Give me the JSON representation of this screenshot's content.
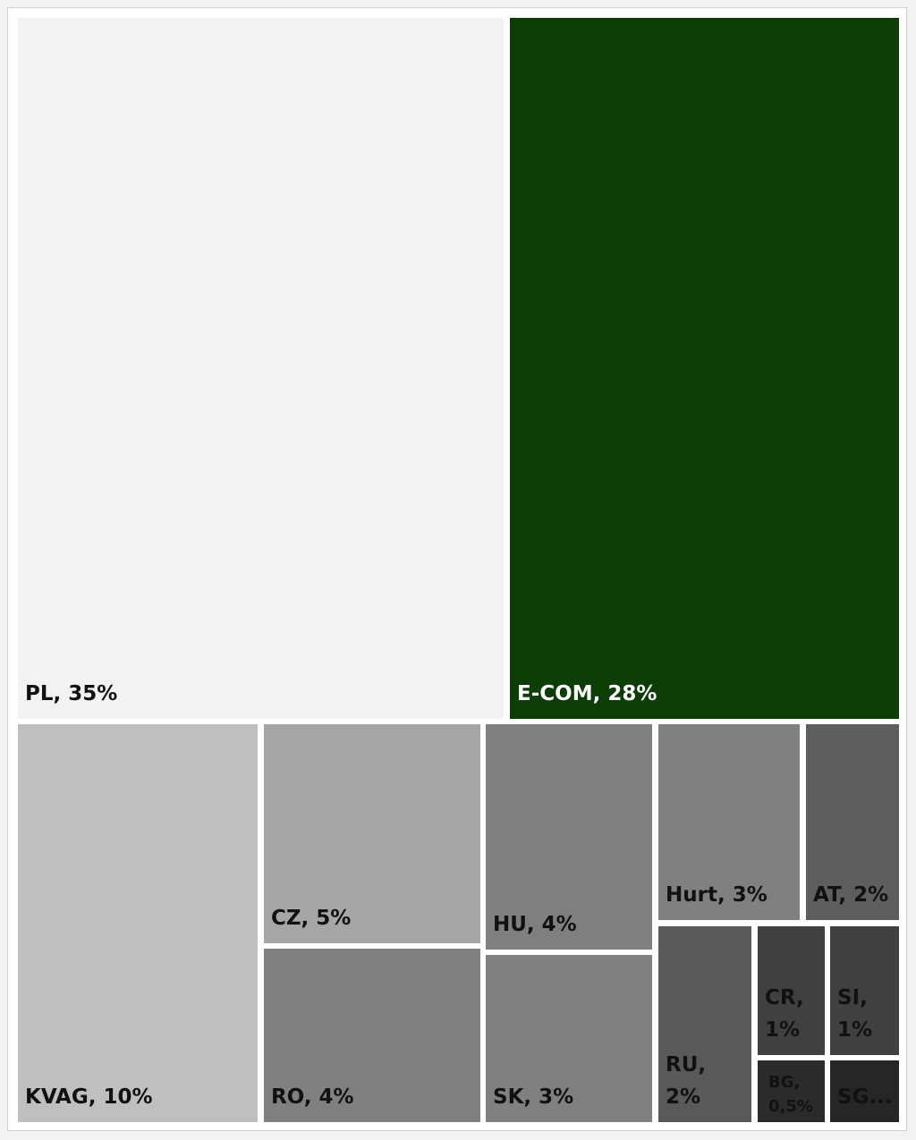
{
  "chart_data": {
    "type": "treemap",
    "title": "",
    "items": [
      {
        "name": "PL",
        "value": 35,
        "label": "PL, 35%",
        "color": "#f2f2f2",
        "text_color": "#111111"
      },
      {
        "name": "E-COM",
        "value": 28,
        "label": "E-COM, 28%",
        "color": "#0b3d05",
        "text_color": "#ffffff"
      },
      {
        "name": "KVAG",
        "value": 10,
        "label": "KVAG, 10%",
        "color": "#bfbfbf",
        "text_color": "#111111"
      },
      {
        "name": "CZ",
        "value": 5,
        "label": "CZ, 5%",
        "color": "#a6a6a6",
        "text_color": "#111111"
      },
      {
        "name": "RO",
        "value": 4,
        "label": "RO, 4%",
        "color": "#808080",
        "text_color": "#111111"
      },
      {
        "name": "HU",
        "value": 4,
        "label": "HU, 4%",
        "color": "#7f7f7f",
        "text_color": "#111111"
      },
      {
        "name": "SK",
        "value": 3,
        "label": "SK, 3%",
        "color": "#808080",
        "text_color": "#111111"
      },
      {
        "name": "Hurt",
        "value": 3,
        "label": "Hurt, 3%",
        "color": "#808080",
        "text_color": "#111111"
      },
      {
        "name": "AT",
        "value": 2,
        "label": "AT, 2%",
        "color": "#5e5e5e",
        "text_color": "#111111"
      },
      {
        "name": "RU",
        "value": 2,
        "label": "RU,\n2%",
        "color": "#595959",
        "text_color": "#111111"
      },
      {
        "name": "CR",
        "value": 1,
        "label": "CR,\n1%",
        "color": "#404040",
        "text_color": "#111111"
      },
      {
        "name": "SI",
        "value": 1,
        "label": "SI,\n1%",
        "color": "#404040",
        "text_color": "#111111"
      },
      {
        "name": "BG",
        "value": 0.5,
        "label": "BG,\n0,5%",
        "color": "#2b2b2b",
        "text_color": "#111111"
      },
      {
        "name": "SG",
        "value": null,
        "label": "SG...",
        "color": "#262626",
        "text_color": "#111111"
      }
    ]
  }
}
